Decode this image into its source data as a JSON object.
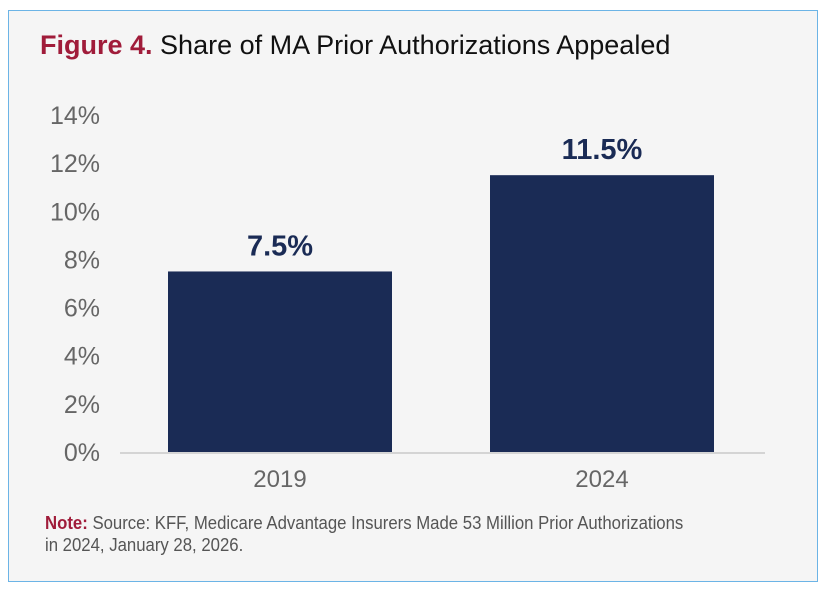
{
  "title": {
    "figure_label": "Figure 4.",
    "text": "Share of MA Prior Authorizations Appealed"
  },
  "note": {
    "label": "Note:",
    "text": "Source: KFF, Medicare Advantage Insurers Made 53 Million Prior Authorizations in 2024, January 28, 2026."
  },
  "colors": {
    "bar": "#1a2b55",
    "accent": "#a01c3a",
    "border": "#6cb4e6",
    "background": "#f5f5f5"
  },
  "chart_data": {
    "type": "bar",
    "categories": [
      "2019",
      "2024"
    ],
    "values": [
      7.5,
      11.5
    ],
    "data_labels": [
      "7.5%",
      "11.5%"
    ],
    "ylim": [
      0,
      14
    ],
    "yticks": [
      "0%",
      "2%",
      "4%",
      "6%",
      "8%",
      "10%",
      "12%",
      "14%"
    ],
    "grid": false,
    "legend": "none"
  }
}
